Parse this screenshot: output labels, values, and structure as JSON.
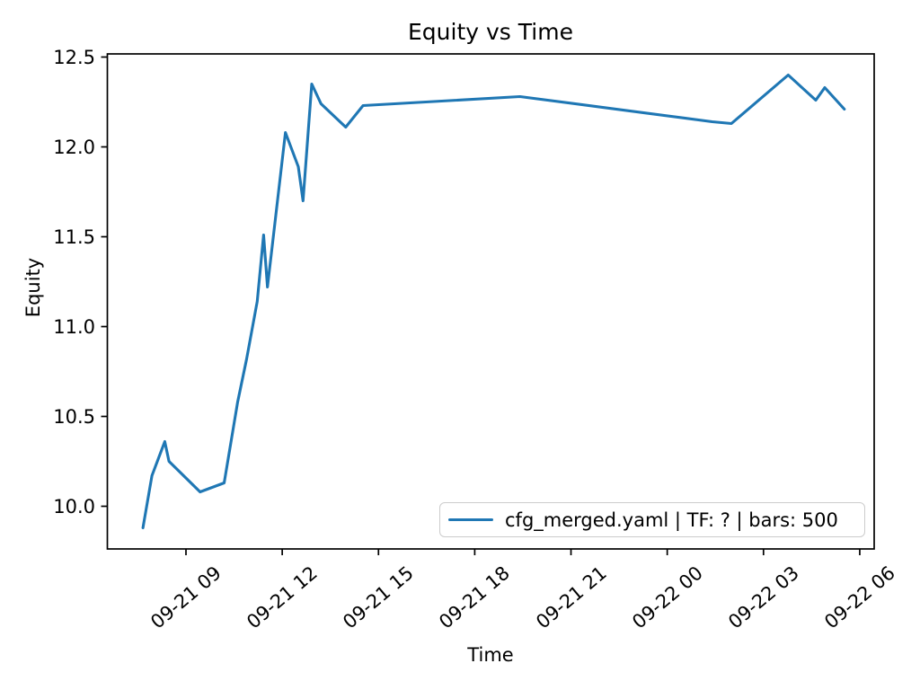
{
  "chart_data": {
    "type": "line",
    "title": "Equity vs Time",
    "xlabel": "Time",
    "ylabel": "Equity",
    "grid": false,
    "legend_position": "lower right",
    "line_color": "#1f77b4",
    "axis_color": "#000000",
    "legend_border_color": "#cccccc",
    "x_encoding": "hours after 09-21 00:00",
    "xlim_hours": [
      6.55,
      30.45
    ],
    "ylim": [
      9.7625,
      12.5175
    ],
    "xticks": {
      "hours": [
        9,
        12,
        15,
        18,
        21,
        24,
        27,
        30
      ],
      "labels": [
        "09-21 09",
        "09-21 12",
        "09-21 15",
        "09-21 18",
        "09-21 21",
        "09-22 00",
        "09-22 03",
        "09-22 06"
      ]
    },
    "yticks": {
      "values": [
        10.0,
        10.5,
        11.0,
        11.5,
        12.0,
        12.5
      ],
      "labels": [
        "10.0",
        "10.5",
        "11.0",
        "11.5",
        "12.0",
        "12.5"
      ]
    },
    "series": [
      {
        "name": "cfg_merged.yaml | TF: ? | bars: 500",
        "color": "#1f77b4",
        "points": [
          [
            7.66,
            9.88
          ],
          [
            7.94,
            10.17
          ],
          [
            8.34,
            10.36
          ],
          [
            8.47,
            10.25
          ],
          [
            9.44,
            10.08
          ],
          [
            10.19,
            10.13
          ],
          [
            10.61,
            10.58
          ],
          [
            10.89,
            10.82
          ],
          [
            11.22,
            11.14
          ],
          [
            11.42,
            11.51
          ],
          [
            11.54,
            11.22
          ],
          [
            12.1,
            12.08
          ],
          [
            12.5,
            11.89
          ],
          [
            12.65,
            11.7
          ],
          [
            12.92,
            12.35
          ],
          [
            13.21,
            12.24
          ],
          [
            13.98,
            12.11
          ],
          [
            14.52,
            12.23
          ],
          [
            19.41,
            12.28
          ],
          [
            25.4,
            12.14
          ],
          [
            26.0,
            12.13
          ],
          [
            27.77,
            12.4
          ],
          [
            28.63,
            12.26
          ],
          [
            28.91,
            12.33
          ],
          [
            29.52,
            12.21
          ]
        ]
      }
    ]
  }
}
